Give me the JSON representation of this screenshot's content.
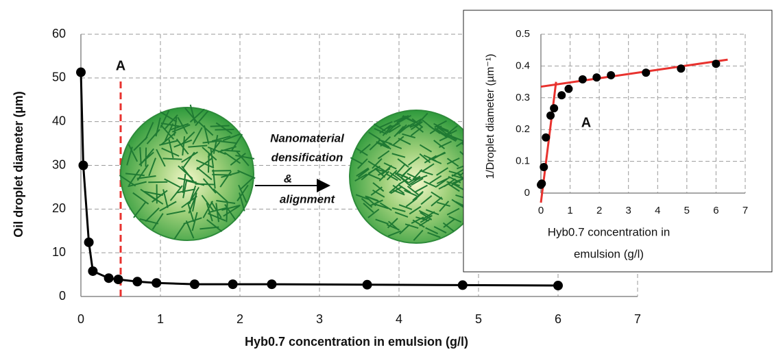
{
  "chart_data": [
    {
      "type": "line",
      "xlabel": "Hyb0.7 concentration in emulsion (g/l)",
      "ylabel": "Oil droplet diameter (µm)",
      "x": [
        0,
        0.03,
        0.1,
        0.15,
        0.35,
        0.47,
        0.71,
        0.95,
        1.43,
        1.91,
        2.4,
        3.6,
        4.8,
        6.0
      ],
      "values": [
        51.3,
        30,
        12.4,
        5.8,
        4.2,
        3.9,
        3.4,
        3.1,
        2.8,
        2.8,
        2.8,
        2.7,
        2.6,
        2.5
      ],
      "color": "#000000",
      "xlim": [
        0,
        7
      ],
      "xticks": [
        0,
        1,
        2,
        3,
        4,
        5,
        6,
        7
      ],
      "ylim": [
        0,
        60
      ],
      "yticks": [
        0,
        10,
        20,
        30,
        40,
        50,
        60
      ],
      "grid": true,
      "marker_line": {
        "x": 0.5,
        "label": "A",
        "color": "#e8322e"
      },
      "annotations": [
        "Nanomaterial",
        "densification",
        "&",
        "alignment"
      ]
    },
    {
      "type": "scatter",
      "xlabel": [
        "Hyb0.7 concentration in",
        "emulsion (g/l)"
      ],
      "ylabel": "1/Droplet diameter (µm⁻¹)",
      "x": [
        0,
        0.03,
        0.1,
        0.17,
        0.33,
        0.45,
        0.71,
        0.95,
        1.43,
        1.91,
        2.4,
        3.6,
        4.8,
        6.0
      ],
      "values": [
        0.026,
        0.03,
        0.082,
        0.175,
        0.244,
        0.267,
        0.308,
        0.328,
        0.358,
        0.364,
        0.371,
        0.379,
        0.392,
        0.407
      ],
      "color": "#000000",
      "xlim": [
        0,
        7
      ],
      "xticks": [
        0,
        1,
        2,
        3,
        4,
        5,
        6,
        7
      ],
      "ylim": [
        0,
        0.5
      ],
      "yticks": [
        0,
        0.1,
        0.2,
        0.3,
        0.4,
        0.5
      ],
      "grid": true,
      "fit_lines": [
        {
          "x": [
            0,
            0.52
          ],
          "y": [
            -0.03,
            0.35
          ],
          "color": "#e8322e"
        },
        {
          "x": [
            0,
            6.4
          ],
          "y": [
            0.335,
            0.42
          ],
          "color": "#e8322e"
        }
      ],
      "annotations": [
        "A"
      ]
    }
  ]
}
